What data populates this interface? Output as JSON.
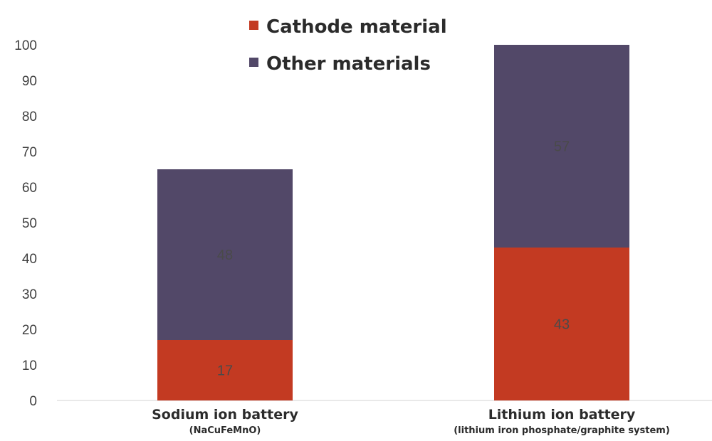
{
  "chart_data": {
    "type": "bar",
    "stacked": true,
    "categories": [
      "Sodium ion battery",
      "Lithium ion battery"
    ],
    "category_sublabels": [
      "(NaCuFeMnO)",
      "(lithium iron phosphate/graphite system)"
    ],
    "series": [
      {
        "name": "Cathode material",
        "values": [
          17,
          43
        ],
        "color": "#c33a22"
      },
      {
        "name": "Other materials",
        "values": [
          48,
          57
        ],
        "color": "#524868"
      }
    ],
    "ylim": [
      0,
      100
    ],
    "yticks": [
      0,
      10,
      20,
      30,
      40,
      50,
      60,
      70,
      80,
      90,
      100
    ],
    "grid": false,
    "legend_position": "top-center",
    "title": "",
    "xlabel": "",
    "ylabel": ""
  }
}
